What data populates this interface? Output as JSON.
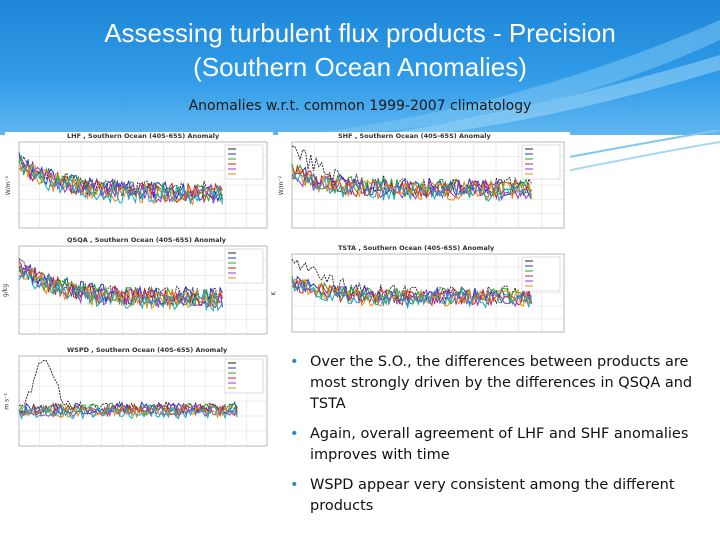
{
  "slide": {
    "title_line1": "Assessing turbulent flux products - Precision",
    "title_line2": "(Southern Ocean Anomalies)",
    "subtitle": "Anomalies w.r.t. common 1999-2007 climatology"
  },
  "panels": [
    {
      "id": "lhf",
      "title": "LHF , Southern Ocean (40S-65S) Anomaly",
      "ylabel": "W/m⁻²"
    },
    {
      "id": "shf",
      "title": "SHF , Southern Ocean (40S-65S) Anomaly",
      "ylabel": "W/m⁻²"
    },
    {
      "id": "qsqa",
      "title": "QSQA , Southern Ocean (40S-65S) Anomaly",
      "ylabel": "g/kg"
    },
    {
      "id": "tsta",
      "title": "TSTA , Southern Ocean (40S-65S) Anomaly",
      "ylabel": "K"
    },
    {
      "id": "wspd",
      "title": "WSPD , Southern Ocean (40S-65S) Anomaly",
      "ylabel": "m s⁻¹"
    }
  ],
  "bullets": [
    "Over the S.O., the differences between products are most strongly driven by the differences in QSQA and TSTA",
    "Again, overall agreement of LHF and SHF anomalies improves with time",
    "WSPD appear very consistent among the different products"
  ],
  "colors": {
    "header": "#2e9ae8",
    "series": [
      "#222222",
      "#2233cc",
      "#22aa22",
      "#cc2222",
      "#9933cc",
      "#ee8800",
      "#11aacc",
      "#88cc22"
    ]
  }
}
